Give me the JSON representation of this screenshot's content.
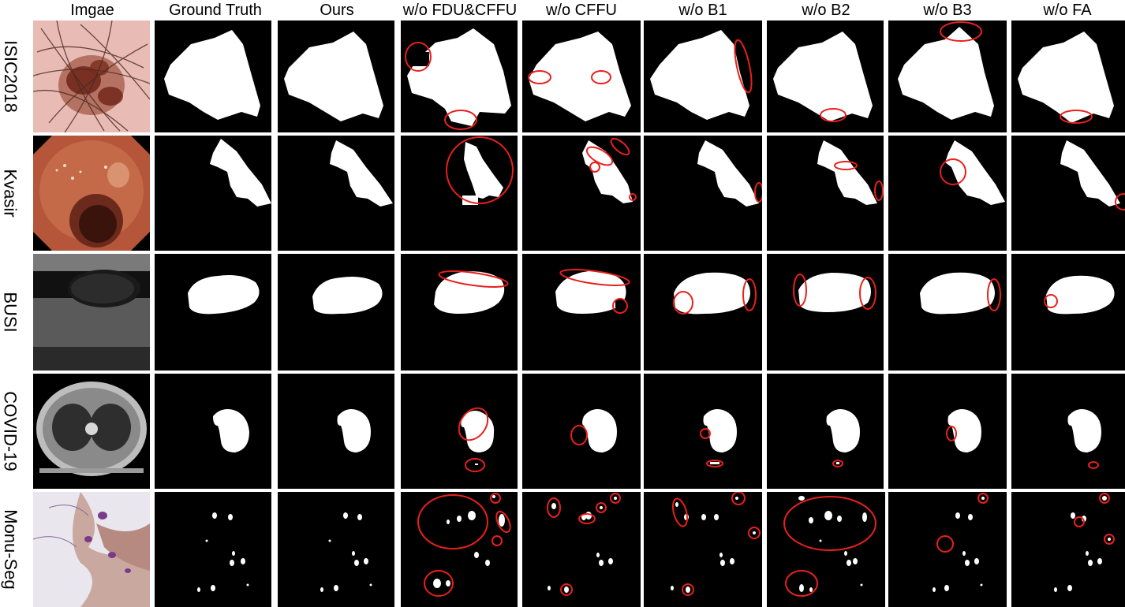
{
  "columns": [
    "Imgae",
    "Ground Truth",
    "Ours",
    "w/o FDU&CFFU",
    "w/o CFFU",
    "w/o B1",
    "w/o B2",
    "w/o B3",
    "w/o FA"
  ],
  "rows": [
    "ISIC2018",
    "Kvasir",
    "BUSI",
    "COVID-19",
    "Monu-Seg"
  ],
  "colors": {
    "mask": "#ffffff",
    "background": "#000000",
    "error_circle": "#e8201c"
  }
}
